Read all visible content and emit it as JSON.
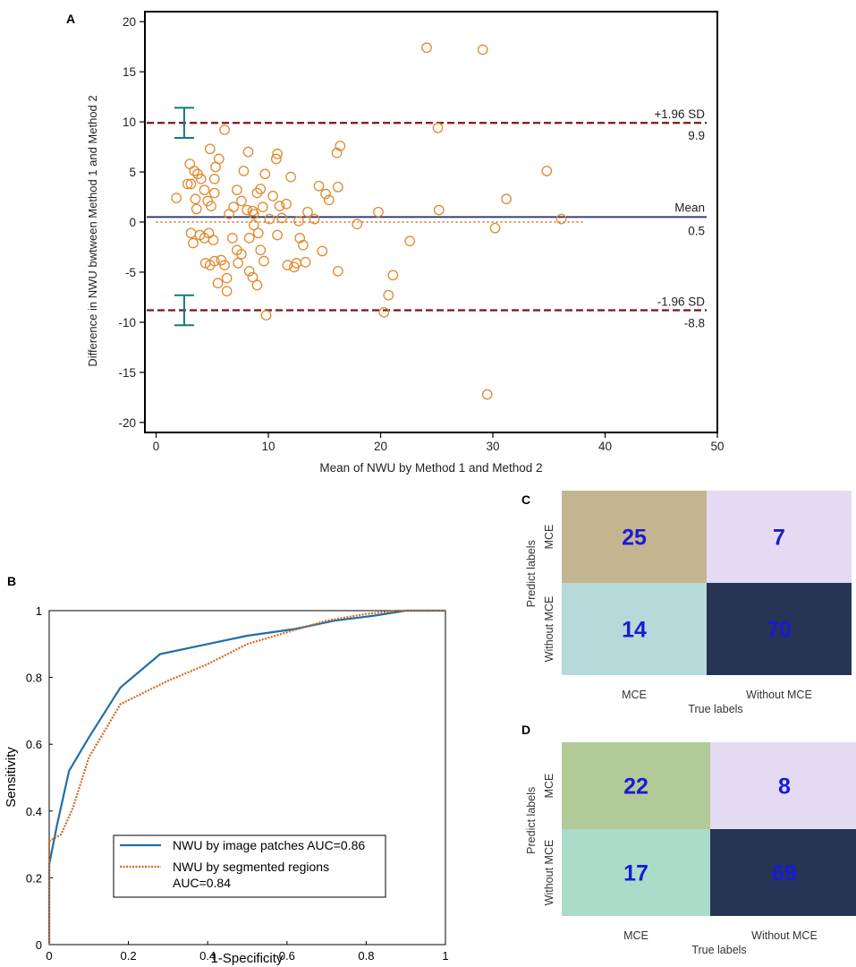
{
  "chart_data": [
    {
      "panel": "A",
      "type": "scatter",
      "title": "",
      "xlabel": "Mean of NWU by Method 1 and Method 2",
      "ylabel": "Difference in NWU bwtween Method 1 and Method 2",
      "xlim": [
        -1,
        50
      ],
      "ylim": [
        -21,
        21
      ],
      "xticks": [
        0,
        10,
        20,
        30,
        40,
        50
      ],
      "yticks": [
        -20,
        -15,
        -10,
        -5,
        0,
        5,
        10,
        15,
        20
      ],
      "reference_lines": {
        "upper": {
          "name": "+1.96 SD",
          "value": 9.9,
          "label": "9.9",
          "ci": [
            8.4,
            11.4
          ]
        },
        "mean": {
          "name": "Mean",
          "value": 0.5,
          "label": "0.5"
        },
        "lower": {
          "name": "-1.96 SD",
          "value": -8.8,
          "label": "-8.8",
          "ci": [
            -10.3,
            -7.3
          ]
        },
        "zero": {
          "value": 0,
          "x_end": 38
        }
      },
      "points": [
        [
          1.8,
          2.4
        ],
        [
          2.8,
          3.8
        ],
        [
          3.0,
          5.8
        ],
        [
          3.4,
          5.1
        ],
        [
          3.1,
          3.8
        ],
        [
          3.5,
          2.3
        ],
        [
          3.7,
          4.8
        ],
        [
          4.0,
          4.3
        ],
        [
          4.3,
          3.2
        ],
        [
          3.6,
          1.3
        ],
        [
          4.6,
          2.1
        ],
        [
          4.9,
          1.6
        ],
        [
          5.2,
          4.3
        ],
        [
          5.3,
          5.5
        ],
        [
          4.8,
          7.3
        ],
        [
          5.6,
          6.3
        ],
        [
          5.2,
          2.9
        ],
        [
          6.1,
          9.2
        ],
        [
          3.1,
          -1.1
        ],
        [
          3.3,
          -2.1
        ],
        [
          3.9,
          -1.3
        ],
        [
          4.3,
          -1.6
        ],
        [
          4.7,
          -1.1
        ],
        [
          5.1,
          -1.8
        ],
        [
          4.4,
          -4.1
        ],
        [
          4.8,
          -4.3
        ],
        [
          5.2,
          -3.9
        ],
        [
          5.5,
          -6.1
        ],
        [
          6.1,
          -4.3
        ],
        [
          6.3,
          -5.6
        ],
        [
          6.3,
          -6.9
        ],
        [
          5.8,
          -3.8
        ],
        [
          6.8,
          -1.6
        ],
        [
          6.5,
          0.8
        ],
        [
          6.9,
          1.5
        ],
        [
          7.2,
          -2.8
        ],
        [
          7.3,
          -4.1
        ],
        [
          7.6,
          -3.2
        ],
        [
          7.2,
          3.2
        ],
        [
          7.6,
          2.1
        ],
        [
          7.8,
          5.1
        ],
        [
          8.1,
          1.2
        ],
        [
          8.3,
          -1.6
        ],
        [
          8.3,
          -4.9
        ],
        [
          8.6,
          -5.5
        ],
        [
          8.7,
          -0.3
        ],
        [
          8.6,
          1.1
        ],
        [
          8.2,
          7.0
        ],
        [
          8.7,
          0.8
        ],
        [
          9.0,
          2.9
        ],
        [
          9.3,
          3.3
        ],
        [
          9.5,
          1.5
        ],
        [
          9.7,
          4.8
        ],
        [
          9.1,
          -1.1
        ],
        [
          9.3,
          -2.8
        ],
        [
          9.6,
          -3.9
        ],
        [
          9.8,
          -9.3
        ],
        [
          10.1,
          0.3
        ],
        [
          10.4,
          2.6
        ],
        [
          10.7,
          6.3
        ],
        [
          10.8,
          6.8
        ],
        [
          10.8,
          -1.3
        ],
        [
          9.0,
          -6.3
        ],
        [
          11.0,
          1.6
        ],
        [
          11.2,
          0.4
        ],
        [
          11.6,
          1.8
        ],
        [
          12.0,
          4.5
        ],
        [
          11.7,
          -4.3
        ],
        [
          12.3,
          -4.5
        ],
        [
          12.5,
          -4.1
        ],
        [
          12.7,
          0.1
        ],
        [
          12.8,
          -1.6
        ],
        [
          13.1,
          -2.3
        ],
        [
          13.3,
          -4.0
        ],
        [
          13.5,
          1.0
        ],
        [
          14.1,
          0.3
        ],
        [
          14.5,
          3.6
        ],
        [
          14.8,
          -2.9
        ],
        [
          15.1,
          2.8
        ],
        [
          15.4,
          2.2
        ],
        [
          16.1,
          6.9
        ],
        [
          16.4,
          7.6
        ],
        [
          16.2,
          3.5
        ],
        [
          16.2,
          -4.9
        ],
        [
          17.9,
          -0.2
        ],
        [
          19.8,
          1.0
        ],
        [
          20.3,
          -9.0
        ],
        [
          20.7,
          -7.3
        ],
        [
          21.1,
          -5.3
        ],
        [
          22.6,
          -1.9
        ],
        [
          24.1,
          17.4
        ],
        [
          25.1,
          9.4
        ],
        [
          25.2,
          1.2
        ],
        [
          29.1,
          17.2
        ],
        [
          29.5,
          -17.2
        ],
        [
          30.2,
          -0.6
        ],
        [
          31.2,
          2.3
        ],
        [
          34.8,
          5.1
        ],
        [
          36.1,
          0.3
        ]
      ]
    },
    {
      "panel": "B",
      "type": "line",
      "xlabel": "1-Specificity",
      "ylabel": "Sensitivity",
      "xlim": [
        0,
        1
      ],
      "ylim": [
        0,
        1
      ],
      "xticks": [
        "0",
        "0.2",
        "0.4",
        "0.6",
        "0.8",
        "1"
      ],
      "yticks": [
        "0",
        "0.2",
        "0.4",
        "0.6",
        "0.8",
        "1"
      ],
      "legend": "bottom",
      "series": [
        {
          "name": "NWU by image patches AUC=0.86",
          "color": "#1f6fa8",
          "x": [
            0,
            0,
            0.02,
            0.05,
            0.1,
            0.18,
            0.28,
            0.4,
            0.5,
            0.62,
            0.72,
            0.82,
            0.9,
            1
          ],
          "y": [
            0,
            0.24,
            0.36,
            0.52,
            0.62,
            0.77,
            0.87,
            0.9,
            0.925,
            0.945,
            0.97,
            0.985,
            1,
            1
          ]
        },
        {
          "name": "NWU by segmented regions",
          "name_line2": "AUC=0.84",
          "color": "#d2691e",
          "x": [
            0,
            0,
            0.03,
            0.06,
            0.1,
            0.18,
            0.3,
            0.4,
            0.5,
            0.6,
            0.7,
            0.8,
            0.88,
            1
          ],
          "y": [
            0,
            0.31,
            0.33,
            0.41,
            0.56,
            0.72,
            0.79,
            0.84,
            0.9,
            0.935,
            0.97,
            0.99,
            1,
            1
          ]
        }
      ]
    },
    {
      "panel": "C",
      "type": "heatmap",
      "xlabel": "True labels",
      "ylabel": "Predict labels",
      "x_categories": [
        "MCE",
        "Without MCE"
      ],
      "y_categories": [
        "MCE",
        "Without MCE"
      ],
      "values": [
        [
          25,
          7
        ],
        [
          14,
          70
        ]
      ],
      "colors": [
        [
          "#c4b590",
          "#e4dbf2"
        ],
        [
          "#b6dad9",
          "#263553"
        ]
      ]
    },
    {
      "panel": "D",
      "type": "heatmap",
      "xlabel": "True labels",
      "ylabel": "Predict labels",
      "x_categories": [
        "MCE",
        "Without MCE"
      ],
      "y_categories": [
        "MCE",
        "Without MCE"
      ],
      "values": [
        [
          22,
          8
        ],
        [
          17,
          69
        ]
      ],
      "colors": [
        [
          "#b1ca98",
          "#e4dbf2"
        ],
        [
          "#aadcc9",
          "#263553"
        ]
      ]
    }
  ]
}
